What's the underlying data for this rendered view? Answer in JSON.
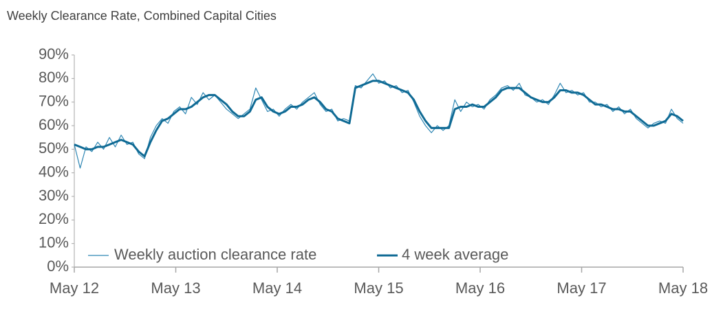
{
  "chart_data": {
    "type": "line",
    "title": "Weekly Clearance Rate, Combined Capital Cities",
    "x": [
      0,
      3,
      6,
      9,
      12,
      15,
      18,
      21,
      24,
      27,
      30,
      33,
      36,
      39,
      42,
      45,
      48,
      51,
      54,
      57,
      60,
      63,
      66,
      69,
      72,
      75,
      78,
      81,
      84,
      87,
      90,
      93,
      96,
      99,
      102,
      105,
      108,
      111,
      114,
      117,
      120,
      123,
      126,
      129,
      132,
      135,
      138,
      141,
      144,
      147,
      150,
      153,
      156,
      159,
      162,
      165,
      168,
      171,
      174,
      177,
      180,
      183,
      186,
      189,
      192,
      195,
      198,
      201,
      204,
      207,
      210,
      213,
      216,
      219,
      222,
      225,
      228,
      231,
      234,
      237,
      240,
      243,
      246,
      249,
      252,
      255,
      258,
      261,
      264,
      267,
      270,
      273,
      276,
      279,
      282,
      285,
      288,
      291,
      294,
      297,
      300,
      303,
      306,
      309,
      312
    ],
    "series": [
      {
        "name": "Weekly auction clearance rate",
        "color": "#2e86b3",
        "width": 1.2,
        "values": [
          52,
          42,
          51,
          49,
          53,
          50,
          55,
          51,
          56,
          52,
          53,
          48,
          46,
          55,
          60,
          63,
          61,
          66,
          68,
          65,
          72,
          69,
          74,
          71,
          73,
          70,
          67,
          65,
          63,
          65,
          67,
          76,
          71,
          66,
          67,
          64,
          67,
          69,
          67,
          70,
          72,
          74,
          69,
          66,
          67,
          62,
          63,
          62,
          77,
          76,
          79,
          82,
          78,
          79,
          76,
          77,
          74,
          75,
          70,
          64,
          60,
          57,
          60,
          58,
          60,
          71,
          66,
          70,
          68,
          69,
          67,
          71,
          73,
          76,
          77,
          75,
          78,
          73,
          72,
          70,
          71,
          69,
          73,
          78,
          74,
          75,
          73,
          74,
          70,
          70,
          68,
          69,
          66,
          68,
          65,
          67,
          63,
          61,
          59,
          61,
          62,
          61,
          67,
          63,
          61
        ]
      },
      {
        "name": "4 week average",
        "color": "#0f6a94",
        "width": 3,
        "values": [
          52,
          51,
          50,
          50,
          51,
          51,
          52,
          53,
          54,
          53,
          52,
          49,
          47,
          53,
          58,
          62,
          63,
          65,
          67,
          67,
          68,
          70,
          72,
          73,
          73,
          71,
          69,
          66,
          64,
          64,
          66,
          71,
          72,
          68,
          66,
          65,
          66,
          68,
          68,
          69,
          71,
          72,
          70,
          67,
          66,
          63,
          62,
          61,
          76,
          77,
          78,
          79,
          79,
          78,
          77,
          76,
          75,
          74,
          71,
          66,
          62,
          59,
          59,
          59,
          59,
          67,
          68,
          68,
          69,
          68,
          68,
          70,
          72,
          75,
          76,
          76,
          76,
          74,
          72,
          71,
          70,
          70,
          72,
          75,
          75,
          74,
          74,
          73,
          71,
          69,
          69,
          68,
          67,
          67,
          66,
          66,
          64,
          62,
          60,
          60,
          61,
          62,
          65,
          64,
          62
        ]
      }
    ],
    "xlim": [
      0,
      312
    ],
    "xticks": [
      {
        "value": 0,
        "label": "May 12"
      },
      {
        "value": 52,
        "label": "May 13"
      },
      {
        "value": 104,
        "label": "May 14"
      },
      {
        "value": 156,
        "label": "May 15"
      },
      {
        "value": 208,
        "label": "May 16"
      },
      {
        "value": 260,
        "label": "May 17"
      },
      {
        "value": 312,
        "label": "May 18"
      }
    ],
    "ylim": [
      0,
      90
    ],
    "yticks": [
      {
        "value": 0,
        "label": "0%"
      },
      {
        "value": 10,
        "label": "10%"
      },
      {
        "value": 20,
        "label": "20%"
      },
      {
        "value": 30,
        "label": "30%"
      },
      {
        "value": 40,
        "label": "40%"
      },
      {
        "value": 50,
        "label": "50%"
      },
      {
        "value": 60,
        "label": "60%"
      },
      {
        "value": 70,
        "label": "70%"
      },
      {
        "value": 80,
        "label": "80%"
      },
      {
        "value": 90,
        "label": "90%"
      }
    ],
    "legend": "lower left"
  }
}
